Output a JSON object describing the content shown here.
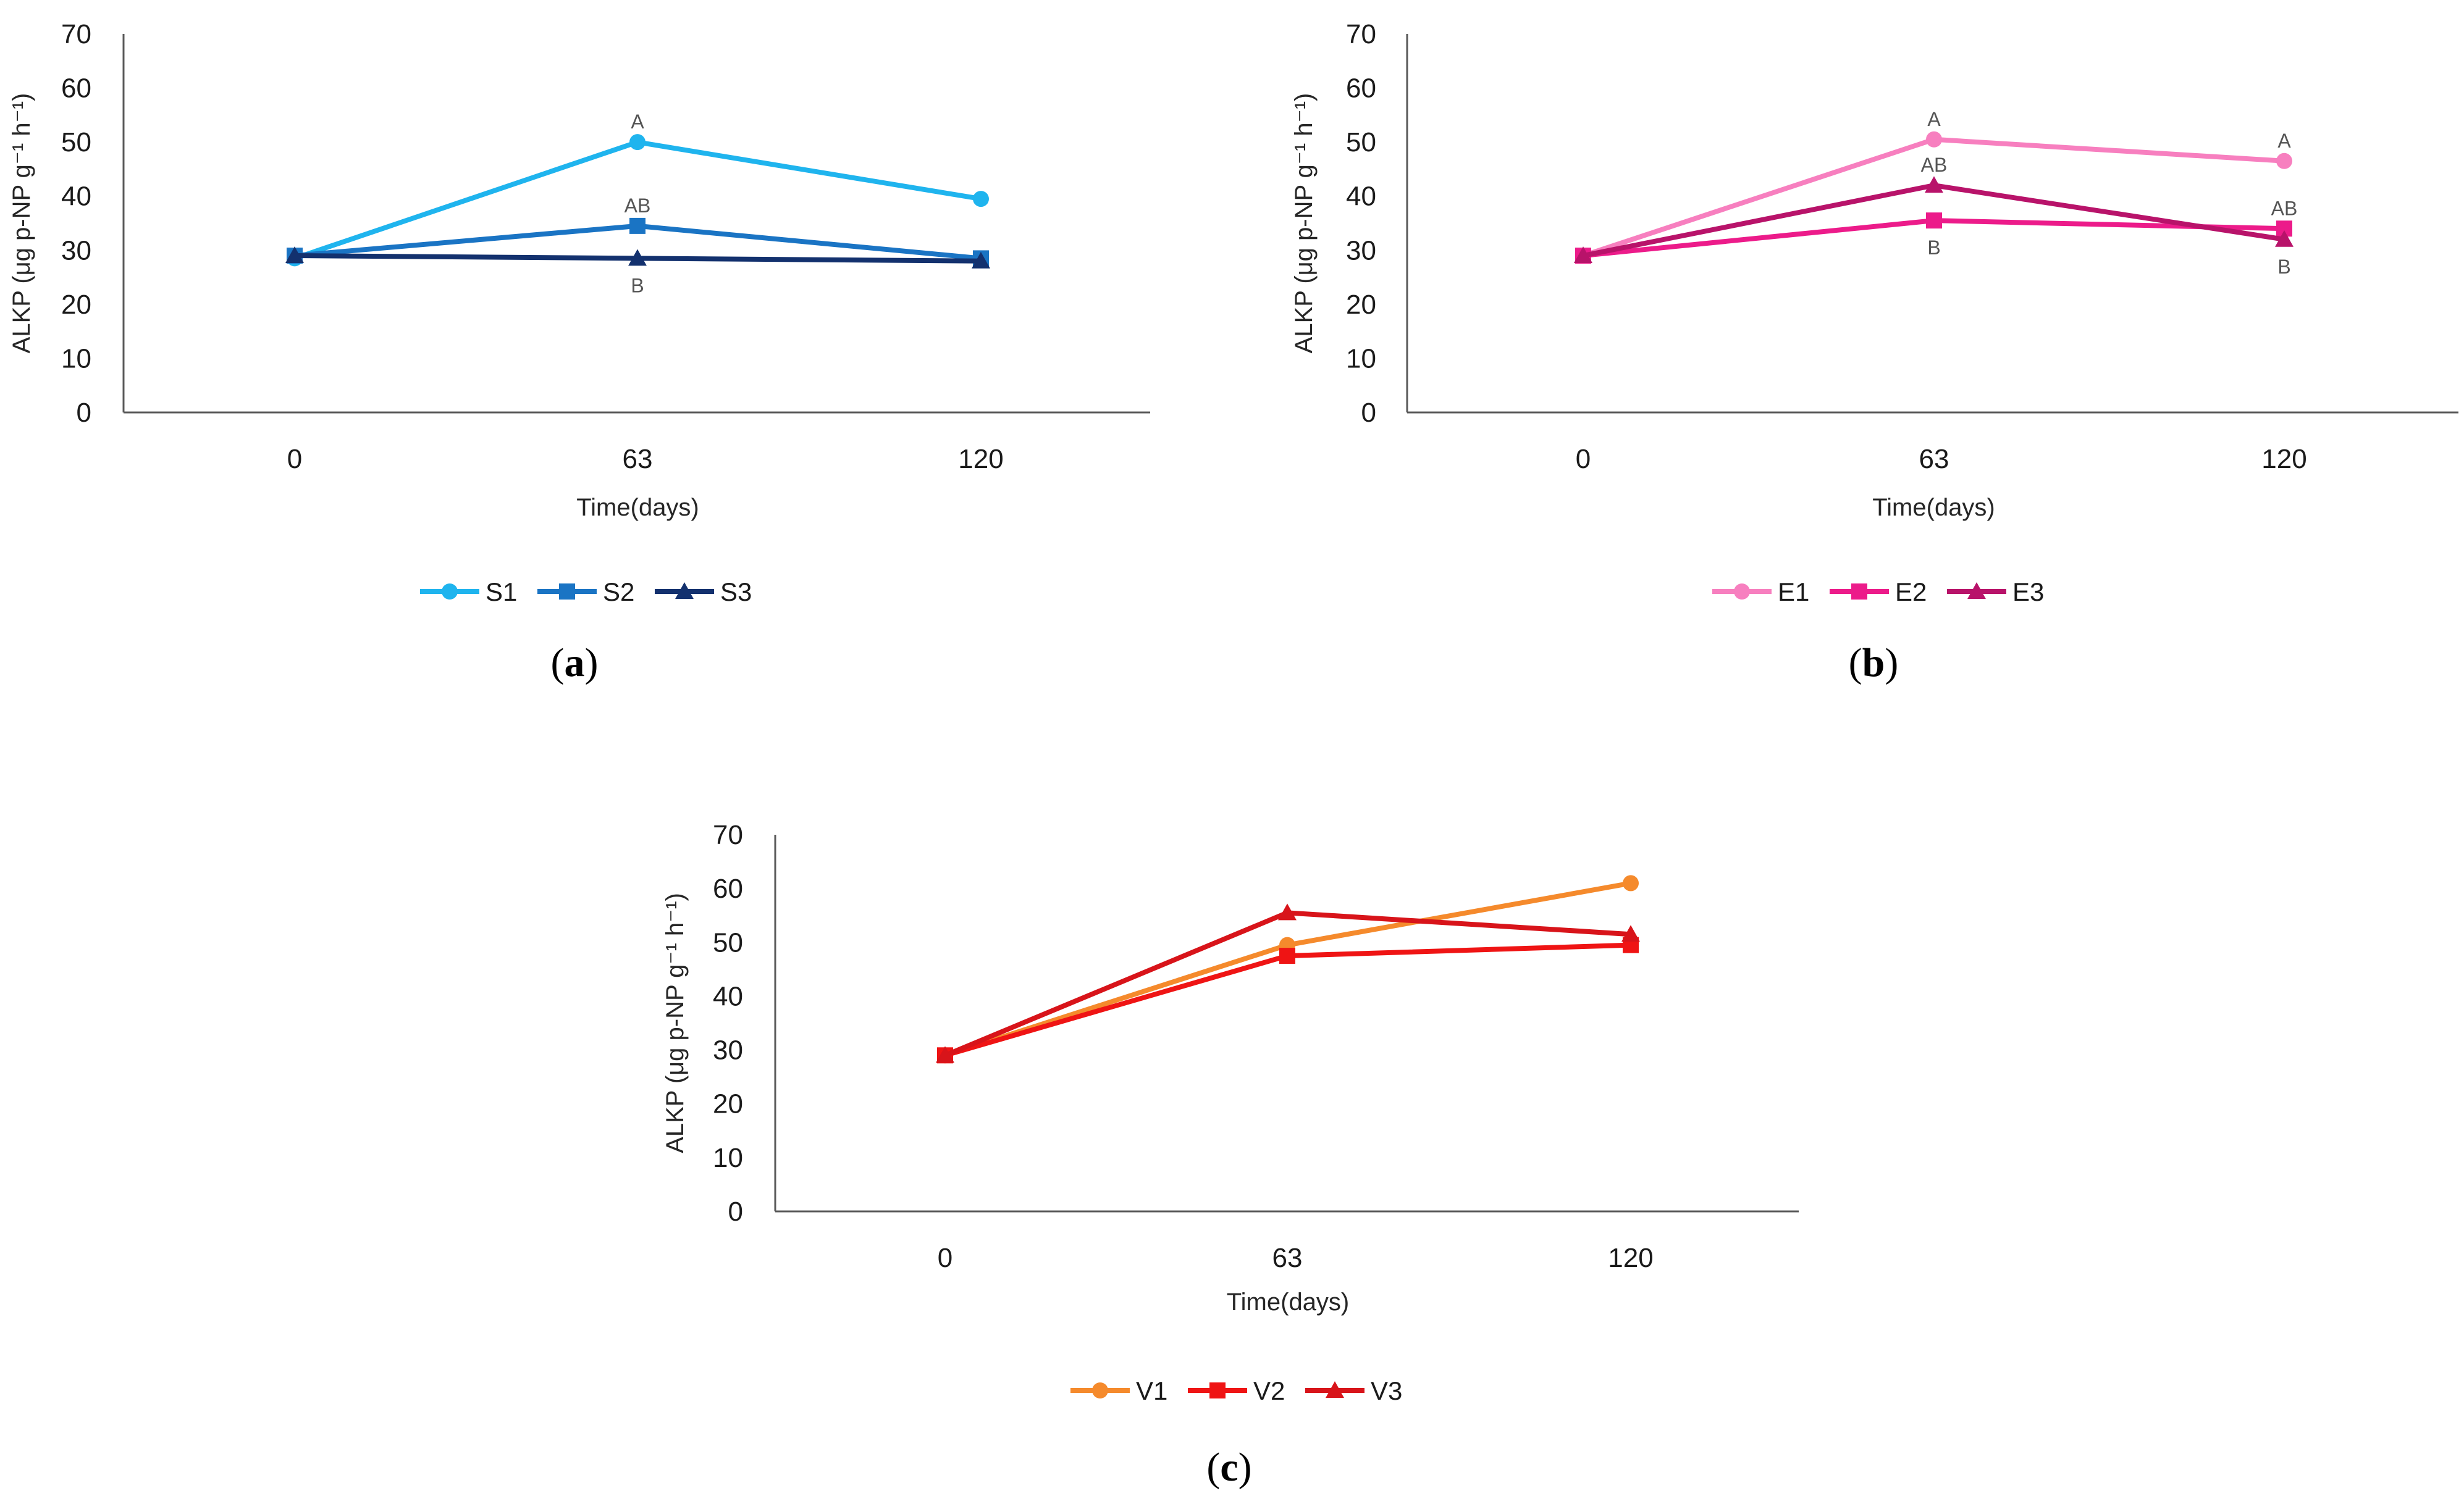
{
  "chart_data": [
    {
      "type": "line",
      "panel_label": "a",
      "categories": [
        "0",
        "63",
        "120"
      ],
      "xlabel": "Time(days)",
      "ylabel": "ALKP (μg p-NP g⁻¹ h⁻¹)",
      "ylim": [
        0,
        70
      ],
      "yticks": [
        "0",
        "10",
        "20",
        "30",
        "40",
        "50",
        "60",
        "70"
      ],
      "grid": false,
      "legend_position": "bottom",
      "series": [
        {
          "name": "S1",
          "values": [
            28.5,
            50,
            39.5
          ],
          "color": "#1fb4ee",
          "marker": "circle"
        },
        {
          "name": "S2",
          "values": [
            29,
            34.5,
            28.5
          ],
          "color": "#1a74c4",
          "marker": "square"
        },
        {
          "name": "S3",
          "values": [
            29,
            28.5,
            28
          ],
          "color": "#13316e",
          "marker": "triangle"
        }
      ],
      "annotations": [
        {
          "series": 0,
          "index": 1,
          "text": "A",
          "position": "above"
        },
        {
          "series": 1,
          "index": 1,
          "text": "AB",
          "position": "above"
        },
        {
          "series": 2,
          "index": 1,
          "text": "B",
          "position": "below"
        }
      ]
    },
    {
      "type": "line",
      "panel_label": "b",
      "categories": [
        "0",
        "63",
        "120"
      ],
      "xlabel": "Time(days)",
      "ylabel": "ALKP (μg p-NP g⁻¹ h⁻¹)",
      "ylim": [
        0,
        70
      ],
      "yticks": [
        "0",
        "10",
        "20",
        "30",
        "40",
        "50",
        "60",
        "70"
      ],
      "grid": false,
      "legend_position": "bottom",
      "series": [
        {
          "name": "E1",
          "values": [
            29,
            50.5,
            46.5
          ],
          "color": "#f77fbf",
          "marker": "circle"
        },
        {
          "name": "E2",
          "values": [
            29,
            35.5,
            34
          ],
          "color": "#ec1b8a",
          "marker": "square"
        },
        {
          "name": "E3",
          "values": [
            29,
            42,
            32
          ],
          "color": "#b8136a",
          "marker": "triangle"
        }
      ],
      "annotations": [
        {
          "series": 0,
          "index": 1,
          "text": "A",
          "position": "above"
        },
        {
          "series": 2,
          "index": 1,
          "text": "AB",
          "position": "above"
        },
        {
          "series": 1,
          "index": 1,
          "text": "B",
          "position": "below"
        },
        {
          "series": 0,
          "index": 2,
          "text": "A",
          "position": "above"
        },
        {
          "series": 1,
          "index": 2,
          "text": "AB",
          "position": "above"
        },
        {
          "series": 2,
          "index": 2,
          "text": "B",
          "position": "below"
        }
      ]
    },
    {
      "type": "line",
      "panel_label": "c",
      "categories": [
        "0",
        "63",
        "120"
      ],
      "xlabel": "Time(days)",
      "ylabel": "ALKP (μg p-NP g⁻¹ h⁻¹)",
      "ylim": [
        0,
        70
      ],
      "yticks": [
        "0",
        "10",
        "20",
        "30",
        "40",
        "50",
        "60",
        "70"
      ],
      "grid": false,
      "legend_position": "bottom",
      "series": [
        {
          "name": "V1",
          "values": [
            29,
            49.5,
            61
          ],
          "color": "#f58a2c",
          "marker": "circle"
        },
        {
          "name": "V2",
          "values": [
            29,
            47.5,
            49.5
          ],
          "color": "#ef1414",
          "marker": "square"
        },
        {
          "name": "V3",
          "values": [
            29,
            55.5,
            51.5
          ],
          "color": "#d8141a",
          "marker": "triangle"
        }
      ],
      "annotations": []
    }
  ]
}
